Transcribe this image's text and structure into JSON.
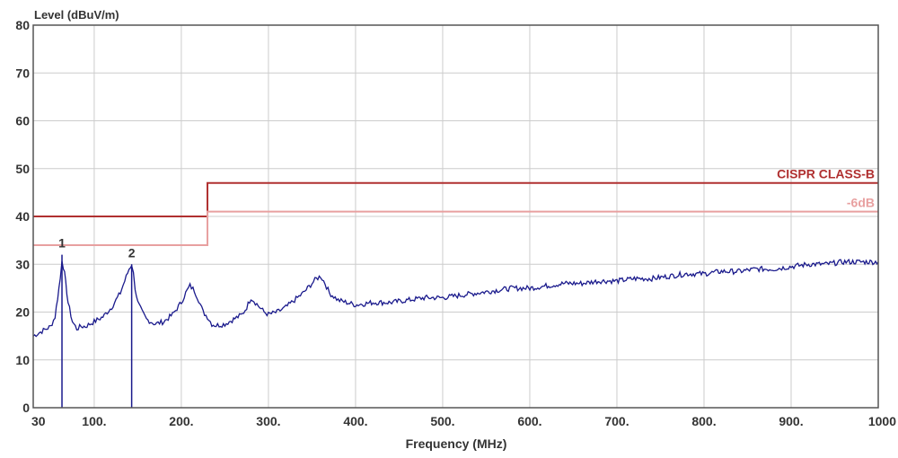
{
  "chart_data": {
    "type": "line",
    "ylabel": "Level (dBuV/m)",
    "xlabel": "Frequency (MHz)",
    "xlim": [
      30,
      1000
    ],
    "ylim": [
      0,
      80
    ],
    "grid": true,
    "x_ticks": [
      {
        "value": 30,
        "label": "30"
      },
      {
        "value": 100,
        "label": "100."
      },
      {
        "value": 200,
        "label": "200."
      },
      {
        "value": 300,
        "label": "300."
      },
      {
        "value": 400,
        "label": "400."
      },
      {
        "value": 500,
        "label": "500."
      },
      {
        "value": 600,
        "label": "600."
      },
      {
        "value": 700,
        "label": "700."
      },
      {
        "value": 800,
        "label": "800."
      },
      {
        "value": 900,
        "label": "900."
      },
      {
        "value": 1000,
        "label": "1000"
      }
    ],
    "y_ticks": [
      {
        "value": 0,
        "label": "0"
      },
      {
        "value": 10,
        "label": "10"
      },
      {
        "value": 20,
        "label": "20"
      },
      {
        "value": 30,
        "label": "30"
      },
      {
        "value": 40,
        "label": "40"
      },
      {
        "value": 50,
        "label": "50"
      },
      {
        "value": 60,
        "label": "60"
      },
      {
        "value": 70,
        "label": "70"
      },
      {
        "value": 80,
        "label": "80"
      }
    ],
    "limits": [
      {
        "name": "CISPR CLASS-B",
        "color": "#b03030",
        "segments": [
          [
            30,
            230,
            40
          ],
          [
            230,
            1000,
            47
          ]
        ]
      },
      {
        "name": "-6dB",
        "color": "#e8a0a0",
        "segments": [
          [
            30,
            230,
            34
          ],
          [
            230,
            1000,
            41
          ]
        ]
      }
    ],
    "series": [
      {
        "color": "#1a1a8c",
        "x": [
          30,
          35,
          40,
          45,
          50,
          55,
          58,
          61,
          63,
          66,
          70,
          75,
          80,
          85,
          90,
          100,
          110,
          120,
          130,
          135,
          140,
          143,
          145,
          147,
          150,
          155,
          160,
          170,
          180,
          190,
          200,
          205,
          210,
          215,
          220,
          225,
          230,
          235,
          240,
          250,
          260,
          270,
          275,
          280,
          285,
          290,
          295,
          300,
          310,
          320,
          330,
          340,
          350,
          355,
          360,
          365,
          370,
          380,
          390,
          400,
          420,
          440,
          460,
          480,
          500,
          520,
          540,
          560,
          580,
          600,
          620,
          640,
          660,
          680,
          700,
          720,
          740,
          760,
          780,
          800,
          820,
          840,
          860,
          880,
          900,
          920,
          940,
          960,
          980,
          1000
        ],
        "y": [
          15,
          15.5,
          16,
          16.5,
          17,
          19,
          23,
          27,
          31,
          28,
          22,
          18,
          16.5,
          17,
          17,
          18,
          19,
          21,
          24,
          26.5,
          29,
          30,
          28,
          25,
          22,
          20,
          18.5,
          17.5,
          18,
          19.5,
          22,
          24,
          25.5,
          24.5,
          22.5,
          20,
          19,
          17.5,
          17.2,
          17.5,
          18.5,
          19.5,
          21,
          23,
          22,
          21,
          20,
          19.5,
          20,
          21,
          22.5,
          24,
          26,
          27,
          27.5,
          26,
          24,
          22.5,
          22,
          21.5,
          22,
          22,
          22.5,
          23,
          23,
          23.5,
          24,
          24.5,
          25,
          25,
          25.5,
          26,
          26,
          26.5,
          26.5,
          27,
          27,
          27.5,
          28,
          28,
          28.5,
          28.5,
          29,
          29,
          29.5,
          30,
          30,
          30.5,
          30.5,
          30.5
        ]
      }
    ],
    "markers": [
      {
        "label": "1",
        "x": 63,
        "y": 32
      },
      {
        "label": "2",
        "x": 143,
        "y": 30
      }
    ]
  }
}
